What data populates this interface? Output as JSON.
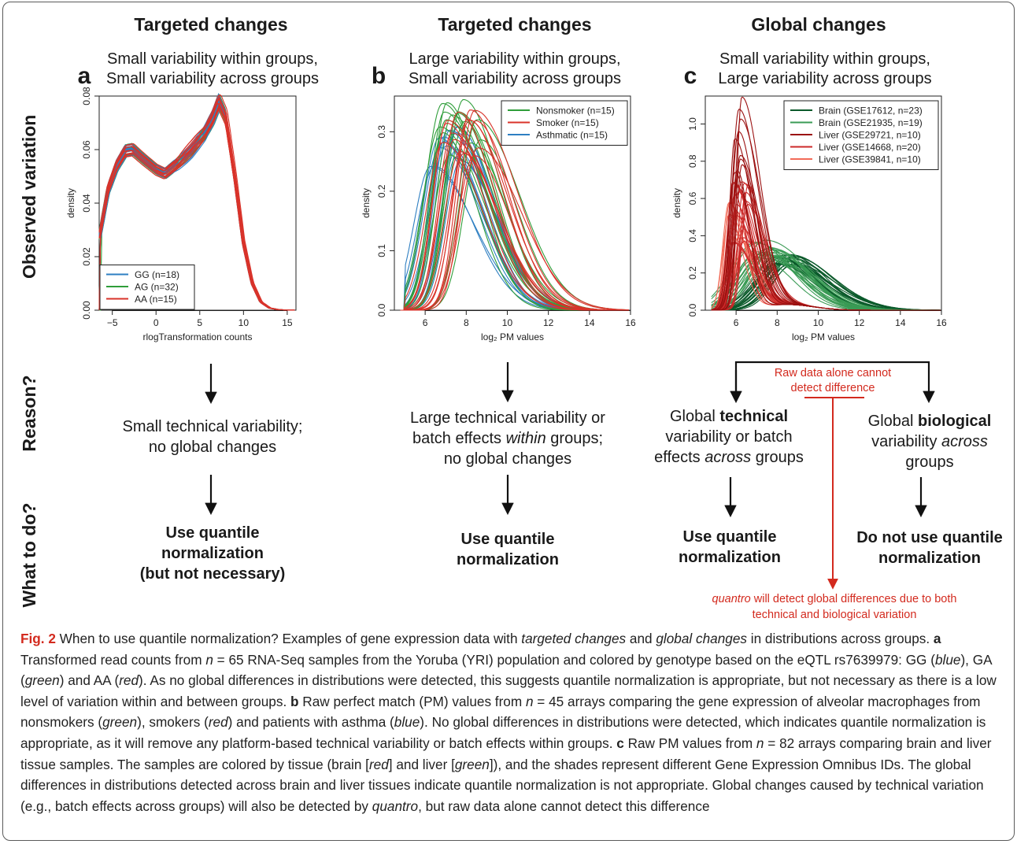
{
  "columns": [
    {
      "heading": "Targeted changes",
      "subtitle": [
        "Small variability within groups,",
        "Small variability across groups"
      ],
      "letter": "a"
    },
    {
      "heading": "Targeted changes",
      "subtitle": [
        "Large variability within groups,",
        "Small variability across groups"
      ],
      "letter": "b"
    },
    {
      "heading": "Global changes",
      "subtitle": [
        "Small variability within groups,",
        "Large variability across groups"
      ],
      "letter": "c"
    }
  ],
  "row_labels": {
    "observed": "Observed variation",
    "reason": "Reason?",
    "what": "What to do?"
  },
  "reasons": {
    "a": [
      "Small technical variability;",
      "no global changes"
    ],
    "b_line1": "Large technical variability or",
    "b_line2_pre": "batch effects ",
    "b_line2_em": "within",
    "b_line2_post": " groups;",
    "b_line3": "no global changes",
    "c_tech_pre": "Global ",
    "c_tech_bold": "technical",
    "c_tech_line2": "variability or batch",
    "c_tech_line3_pre": "effects ",
    "c_tech_line3_em": "across",
    "c_tech_line3_post": " groups",
    "c_bio_pre": "Global ",
    "c_bio_bold": "biological",
    "c_bio_line2_pre": "variability ",
    "c_bio_line2_em": "across",
    "c_bio_line3": "groups",
    "raw_data_note": [
      "Raw data alone cannot",
      "detect difference"
    ]
  },
  "actions": {
    "a": [
      "Use quantile",
      "normalization",
      "(but not necessary)"
    ],
    "b": [
      "Use quantile",
      "normalization"
    ],
    "c_tech": [
      "Use quantile",
      "normalization"
    ],
    "c_bio": [
      "Do not use quantile",
      "normalization"
    ],
    "quantro_em": "quantro",
    "quantro_rest": " will detect global differences due to both",
    "quantro_line2": "technical and biological variation"
  },
  "colors": {
    "blue": "#2e7fc2",
    "green": "#2f9e3a",
    "red": "#d9332a",
    "arrow_red": "#d32a1e",
    "c_series": [
      "#0b5a2b",
      "#3a9b55",
      "#9b1111",
      "#cc2a2a",
      "#f26b58"
    ]
  },
  "caption": {
    "fig": "Fig. 2",
    "s1": " When to use quantile normalization? Examples of gene expression data with ",
    "s1_em1": "targeted changes",
    "s1_and": " and ",
    "s1_em2": "global changes",
    "s1_end": " in distributions across groups. ",
    "a_letter": "a",
    "a1": " Transformed read counts from ",
    "n": "n",
    "a2": " = 65 RNA-Seq samples from the Yoruba (YRI) population and colored by genotype based on the eQTL rs7639979: GG (",
    "blue": "blue",
    "a3": "), GA (",
    "green": "green",
    "a4": ") and AA (",
    "red": "red",
    "a5": "). As no global differences in distributions were detected, this suggests quantile normalization is appropriate, but not necessary as there is a low level of variation within and between groups. ",
    "b_letter": "b",
    "b1": " Raw perfect match (PM) values from ",
    "b2": " = 45 arrays comparing the gene expression of alveolar macrophages from nonsmokers (",
    "b3": "), smokers (",
    "b4": ") and patients with asthma (",
    "b5": "). No global differences in distributions were detected, which indicates quantile normalization is appropriate, as it will remove any platform-based technical variability or batch effects within groups. ",
    "c_letter": "c",
    "c1": " Raw PM values from ",
    "c2": " = 82 arrays comparing brain and liver tissue samples. The samples are colored by tissue (brain [",
    "c3": "] and liver [",
    "c4": "]), and the shades represent different Gene Expression Omnibus IDs. The global differences in distributions detected across brain and liver tissues indicate quantile normalization is not appropriate. Global changes caused by technical variation (e.g., batch effects across groups) will also be detected by ",
    "quantro": "quantro",
    "c5": ", but raw data alone cannot detect this difference"
  },
  "chart_data": [
    {
      "type": "line",
      "panel": "a",
      "xlabel": "rlogTransformation counts",
      "ylabel": "density",
      "xlim": [
        -6.5,
        16
      ],
      "ylim": [
        0,
        0.08
      ],
      "xticks": [
        -5,
        0,
        5,
        10,
        15
      ],
      "yticks": [
        0.0,
        0.02,
        0.04,
        0.06,
        0.08
      ],
      "xtick_labels": [
        "−5",
        "0",
        "5",
        "10",
        "15"
      ],
      "ytick_labels": [
        "0.00",
        "0.02",
        "0.04",
        "0.06",
        "0.08"
      ],
      "legend": {
        "position": "bottom-left",
        "entries": [
          "GG (n=18)",
          "AG (n=32)",
          "AA (n=15)"
        ]
      },
      "series": [
        {
          "name": "GG (n=18)",
          "color": "#2e7fc2",
          "count": 18
        },
        {
          "name": "AG (n=32)",
          "color": "#2f9e3a",
          "count": 32
        },
        {
          "name": "AA (n=15)",
          "color": "#d9332a",
          "count": 15
        }
      ],
      "shape_points": [
        [
          -6.5,
          0.027
        ],
        [
          -5.5,
          0.045
        ],
        [
          -4.5,
          0.054
        ],
        [
          -3.5,
          0.0595
        ],
        [
          -2.7,
          0.06
        ],
        [
          -1.5,
          0.0565
        ],
        [
          0,
          0.0525
        ],
        [
          1,
          0.051
        ],
        [
          2.5,
          0.055
        ],
        [
          4,
          0.06
        ],
        [
          5.5,
          0.066
        ],
        [
          6.5,
          0.072
        ],
        [
          7.2,
          0.078
        ],
        [
          8,
          0.072
        ],
        [
          9,
          0.05
        ],
        [
          10,
          0.025
        ],
        [
          11,
          0.01
        ],
        [
          12,
          0.003
        ],
        [
          13,
          0.0008
        ],
        [
          14,
          0.0002
        ],
        [
          16,
          0.0
        ]
      ]
    },
    {
      "type": "line",
      "panel": "b",
      "xlabel": "log₂ PM values",
      "ylabel": "density",
      "xlim": [
        4.5,
        16
      ],
      "ylim": [
        0,
        0.36
      ],
      "xticks": [
        6,
        8,
        10,
        12,
        14,
        16
      ],
      "yticks": [
        0.0,
        0.1,
        0.2,
        0.3
      ],
      "xtick_labels": [
        "6",
        "8",
        "10",
        "12",
        "14",
        "16"
      ],
      "ytick_labels": [
        "0.0",
        "0.1",
        "0.2",
        "0.3"
      ],
      "legend": {
        "position": "top-right",
        "entries": [
          "Nonsmoker (n=15)",
          "Smoker (n=15)",
          "Asthmatic (n=15)"
        ]
      },
      "series": [
        {
          "name": "Nonsmoker (n=15)",
          "color": "#2f9e3a",
          "count": 15,
          "peak_range": [
            6.6,
            8.8
          ],
          "height_range": [
            0.26,
            0.36
          ]
        },
        {
          "name": "Smoker (n=15)",
          "color": "#d9332a",
          "count": 15,
          "peak_range": [
            6.8,
            8.6
          ],
          "height_range": [
            0.26,
            0.35
          ]
        },
        {
          "name": "Asthmatic (n=15)",
          "color": "#2e7fc2",
          "count": 15,
          "peak_range": [
            6.2,
            7.8
          ],
          "height_range": [
            0.24,
            0.31
          ]
        }
      ]
    },
    {
      "type": "line",
      "panel": "c",
      "xlabel": "log₂ PM values",
      "ylabel": "density",
      "xlim": [
        4.5,
        16
      ],
      "ylim": [
        0,
        1.15
      ],
      "xticks": [
        6,
        8,
        10,
        12,
        14,
        16
      ],
      "yticks": [
        0.0,
        0.2,
        0.4,
        0.6,
        0.8,
        1.0
      ],
      "xtick_labels": [
        "6",
        "8",
        "10",
        "12",
        "14",
        "16"
      ],
      "ytick_labels": [
        "0.0",
        "0.2",
        "0.4",
        "0.6",
        "0.8",
        "1.0"
      ],
      "legend": {
        "position": "top-right",
        "entries": [
          "Brain (GSE17612, n=23)",
          "Brain (GSE21935, n=19)",
          "Liver (GSE29721, n=10)",
          "Liver (GSE14668, n=20)",
          "Liver (GSE39841, n=10)"
        ]
      },
      "series": [
        {
          "name": "Brain (GSE17612, n=23)",
          "color": "#0b5a2b",
          "count": 23,
          "peak_range": [
            7.8,
            9.0
          ],
          "height_range": [
            0.24,
            0.3
          ]
        },
        {
          "name": "Brain (GSE21935, n=19)",
          "color": "#3a9b55",
          "count": 19,
          "peak_range": [
            6.9,
            8.0
          ],
          "height_range": [
            0.28,
            0.38
          ]
        },
        {
          "name": "Liver (GSE29721, n=10)",
          "color": "#9b1111",
          "count": 10,
          "peak_range": [
            5.9,
            6.3
          ],
          "height_range": [
            0.7,
            1.15
          ]
        },
        {
          "name": "Liver (GSE14668, n=20)",
          "color": "#cc2a2a",
          "count": 20,
          "peak_range": [
            5.8,
            6.6
          ],
          "height_range": [
            0.35,
            0.7
          ]
        },
        {
          "name": "Liver (GSE39841, n=10)",
          "color": "#f26b58",
          "count": 10,
          "peak_range": [
            5.6,
            6.3
          ],
          "height_range": [
            0.35,
            0.6
          ]
        }
      ]
    }
  ]
}
